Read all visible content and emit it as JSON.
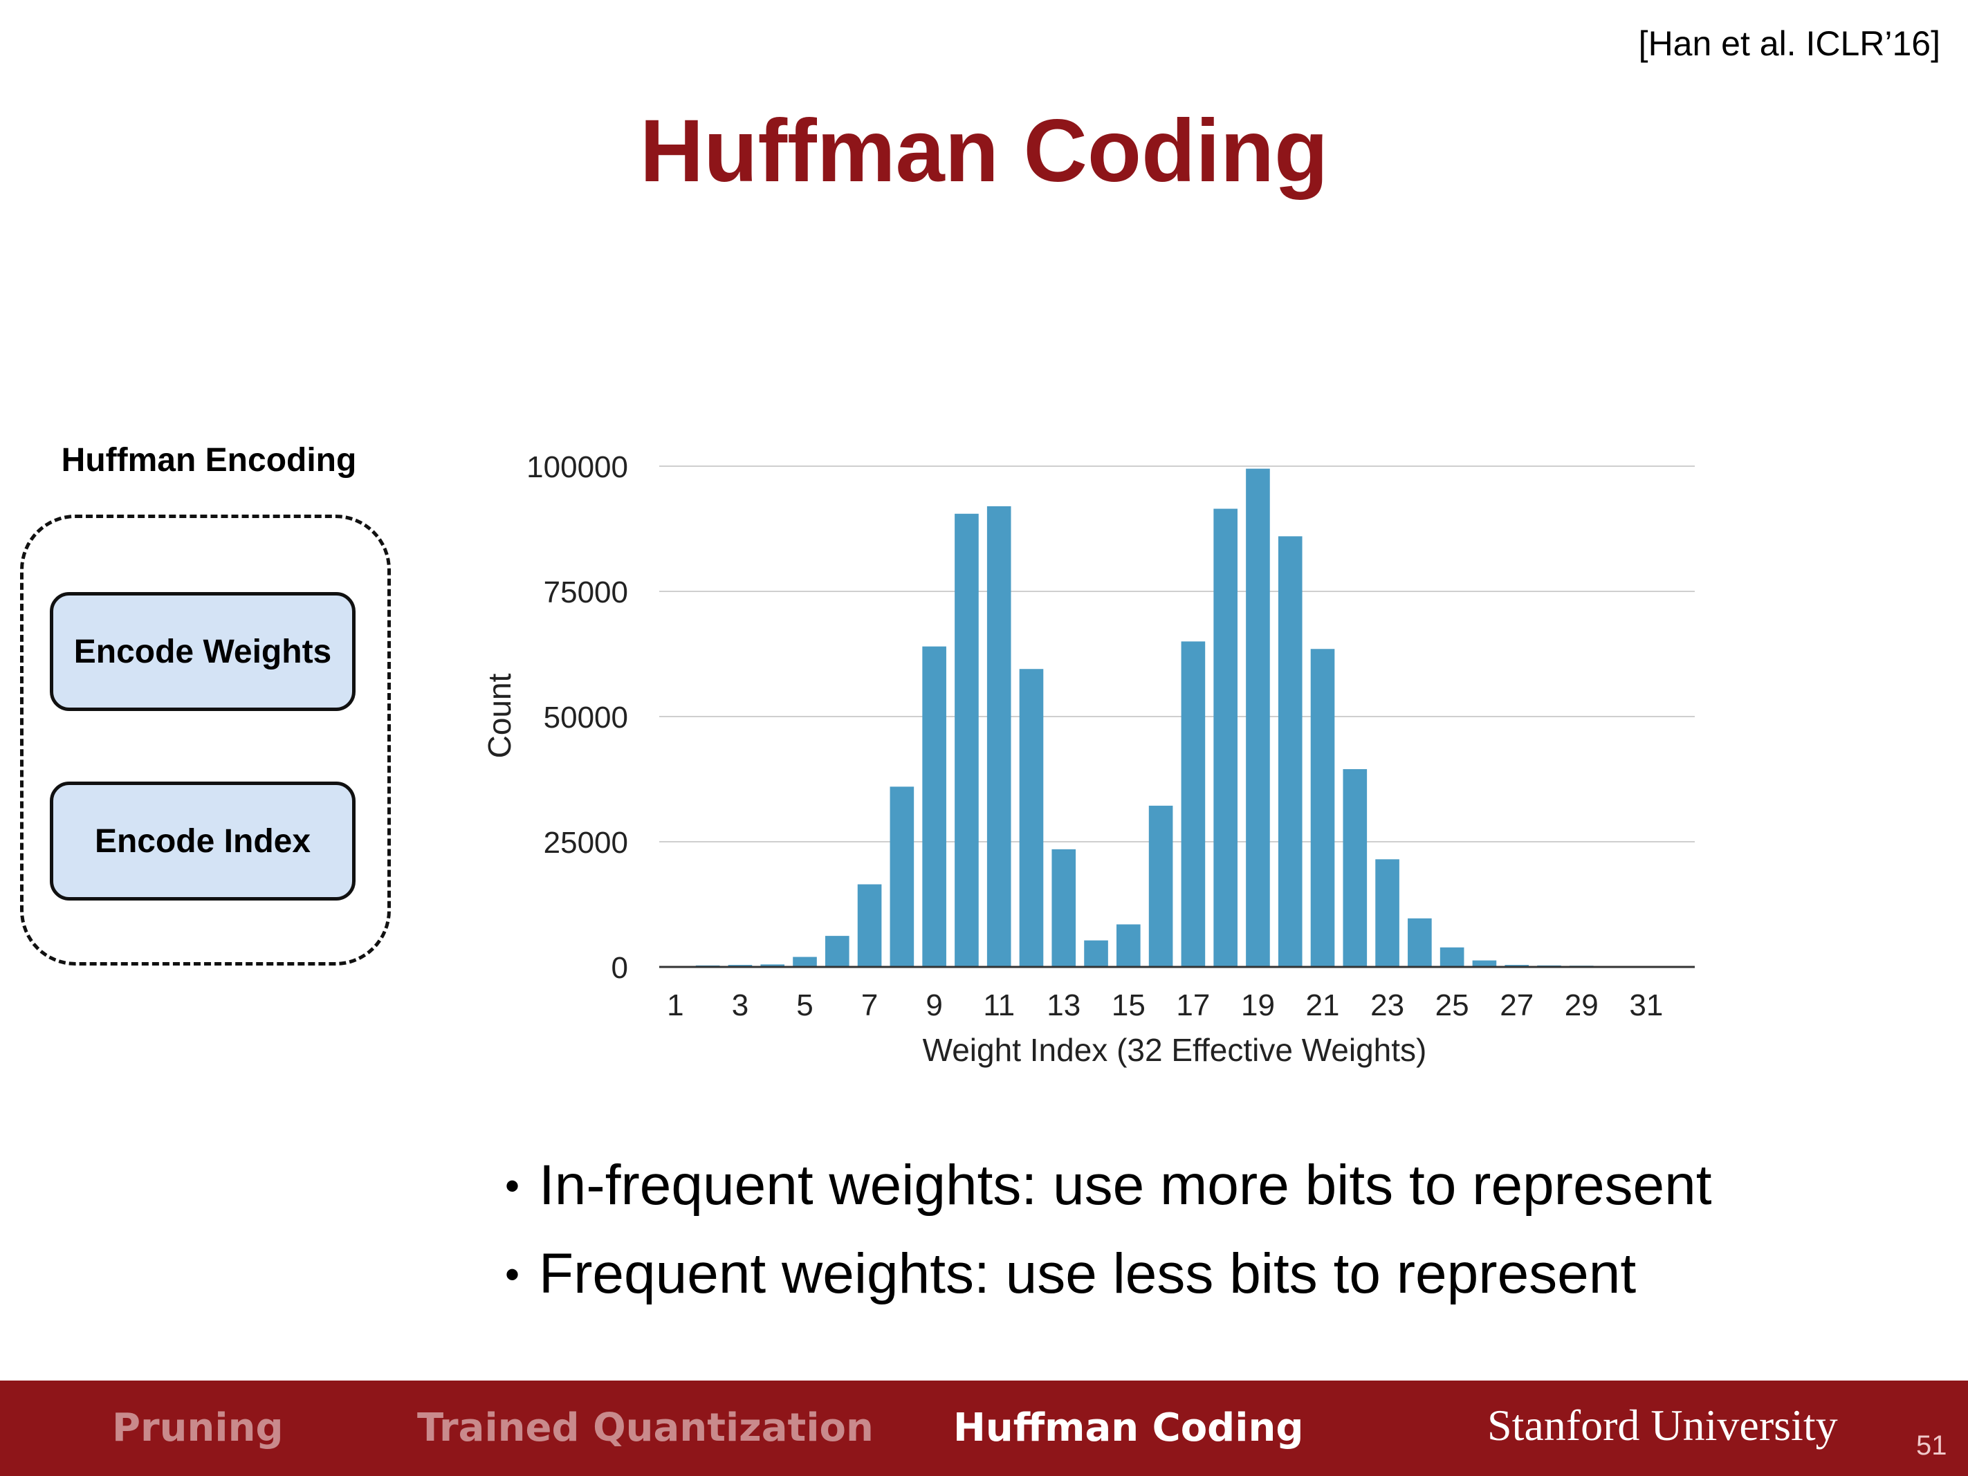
{
  "citation": "[Han et al. ICLR’16]",
  "title": "Huffman Coding",
  "panel": {
    "label": "Huffman Encoding",
    "boxes": [
      "Encode Weights",
      "Encode Index"
    ]
  },
  "bullets": [
    "In-frequent weights: use more bits to represent",
    "Frequent weights: use less bits to represent"
  ],
  "footer": {
    "nav": [
      "Pruning",
      "Trained Quantization",
      "Huffman Coding"
    ],
    "active": "Huffman Coding",
    "brand": "Stanford University",
    "page": "51"
  },
  "colors": {
    "title": "#8e1519",
    "footer": "#8e1519",
    "bar": "#4a9bc4",
    "box_fill": "#d4e3f5"
  },
  "chart_data": {
    "type": "bar",
    "xlabel": "Weight Index (32 Effective Weights)",
    "ylabel": "Count",
    "ylim": [
      0,
      100000
    ],
    "yticks": [
      0,
      25000,
      50000,
      75000,
      100000
    ],
    "grid": true,
    "x": [
      1,
      2,
      3,
      4,
      5,
      6,
      7,
      8,
      9,
      10,
      11,
      12,
      13,
      14,
      15,
      16,
      17,
      18,
      19,
      20,
      21,
      22,
      23,
      24,
      25,
      26,
      27,
      28,
      29,
      30,
      31,
      32
    ],
    "xtick_labels": [
      "1",
      "3",
      "5",
      "7",
      "9",
      "11",
      "13",
      "15",
      "17",
      "19",
      "21",
      "23",
      "25",
      "27",
      "29",
      "31"
    ],
    "values": [
      200,
      300,
      400,
      500,
      2000,
      6200,
      16500,
      36000,
      64000,
      90500,
      92000,
      59500,
      23500,
      5300,
      8500,
      32200,
      65000,
      91500,
      99500,
      86000,
      63500,
      39500,
      21500,
      9700,
      3900,
      1300,
      400,
      300,
      250,
      200,
      150,
      100
    ]
  }
}
